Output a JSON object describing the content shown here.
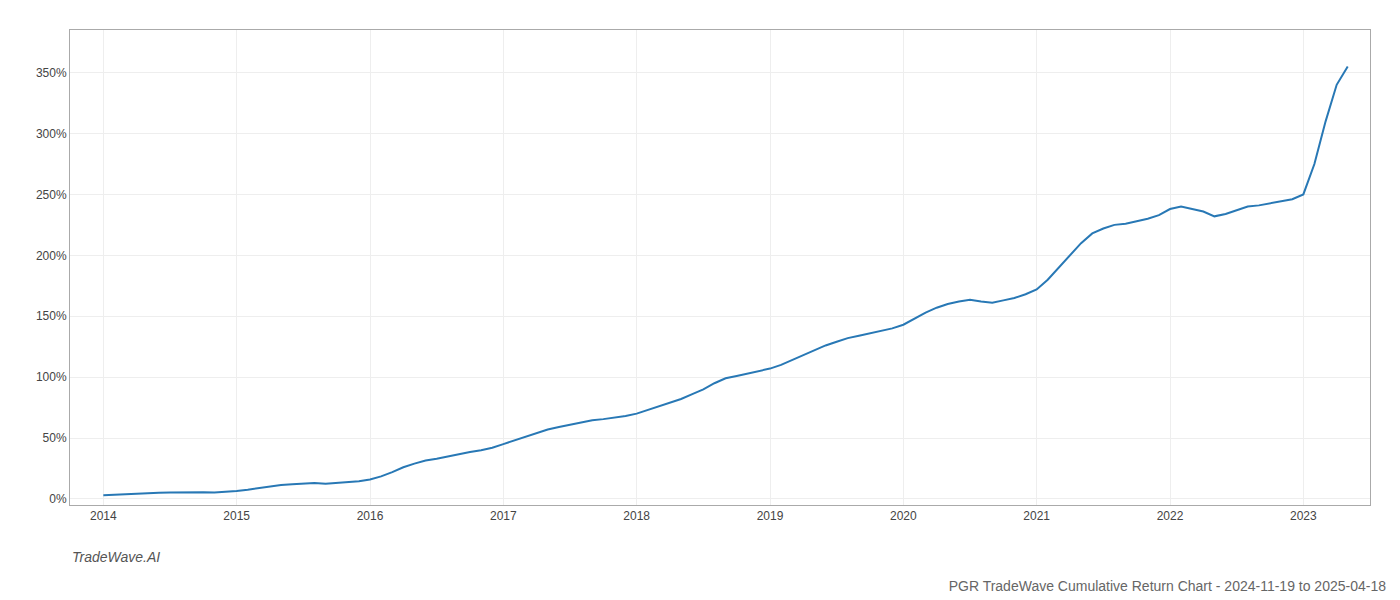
{
  "chart_data": {
    "type": "line",
    "title": "PGR TradeWave Cumulative Return Chart - 2024-11-19 to 2025-04-18",
    "annotations": [
      "TradeWave.AI"
    ],
    "color": "#2878b5",
    "grid": true,
    "x": [
      2014.0,
      2014.083,
      2014.167,
      2014.25,
      2014.333,
      2014.417,
      2014.5,
      2014.583,
      2014.667,
      2014.75,
      2014.833,
      2014.917,
      2015.0,
      2015.083,
      2015.167,
      2015.25,
      2015.333,
      2015.417,
      2015.5,
      2015.583,
      2015.667,
      2015.75,
      2015.833,
      2015.917,
      2016.0,
      2016.083,
      2016.167,
      2016.25,
      2016.333,
      2016.417,
      2016.5,
      2016.583,
      2016.667,
      2016.75,
      2016.833,
      2016.917,
      2017.0,
      2017.083,
      2017.167,
      2017.25,
      2017.333,
      2017.417,
      2017.5,
      2017.583,
      2017.667,
      2017.75,
      2017.833,
      2017.917,
      2018.0,
      2018.083,
      2018.167,
      2018.25,
      2018.333,
      2018.417,
      2018.5,
      2018.583,
      2018.667,
      2018.75,
      2018.833,
      2018.917,
      2019.0,
      2019.083,
      2019.167,
      2019.25,
      2019.333,
      2019.417,
      2019.5,
      2019.583,
      2019.667,
      2019.75,
      2019.833,
      2019.917,
      2020.0,
      2020.083,
      2020.167,
      2020.25,
      2020.333,
      2020.417,
      2020.5,
      2020.583,
      2020.667,
      2020.75,
      2020.833,
      2020.917,
      2021.0,
      2021.083,
      2021.167,
      2021.25,
      2021.333,
      2021.417,
      2021.5,
      2021.583,
      2021.667,
      2021.75,
      2021.833,
      2021.917,
      2022.0,
      2022.083,
      2022.167,
      2022.25,
      2022.333,
      2022.417,
      2022.5,
      2022.583,
      2022.667,
      2022.75,
      2022.833,
      2022.917,
      2023.0,
      2023.083,
      2023.167,
      2023.25,
      2023.333
    ],
    "values": [
      3.0,
      3.5,
      4.0,
      4.5,
      4.8,
      5.0,
      5.2,
      5.5,
      5.8,
      5.5,
      5.3,
      5.8,
      6.5,
      7.5,
      9.0,
      10.5,
      11.5,
      12.0,
      12.5,
      13.0,
      12.5,
      13.0,
      13.5,
      14.5,
      16.0,
      18.5,
      22.0,
      26.0,
      29.0,
      31.5,
      33.0,
      35.0,
      37.0,
      38.5,
      40.0,
      42.0,
      45.0,
      48.0,
      51.0,
      54.0,
      57.0,
      59.0,
      61.0,
      63.0,
      64.5,
      65.5,
      66.5,
      68.0,
      70.0,
      73.0,
      76.0,
      79.0,
      82.0,
      86.0,
      90.0,
      95.0,
      99.0,
      101.0,
      103.0,
      105.0,
      107.0,
      110.0,
      114.0,
      118.0,
      122.0,
      126.0,
      129.0,
      132.0,
      134.0,
      136.0,
      138.0,
      140.0,
      143.0,
      148.0,
      153.0,
      157.0,
      160.0,
      162.0,
      163.5,
      162.0,
      161.0,
      163.0,
      165.0,
      168.0,
      172.0,
      180.0,
      190.0,
      200.0,
      210.0,
      218.0,
      222.0,
      225.0,
      226.0,
      228.0,
      230.0,
      233.0,
      238.0,
      240.0,
      238.0,
      236.0,
      232.0,
      234.0,
      237.0,
      240.0,
      241.0,
      242.5,
      244.0,
      246.0,
      250.0,
      275.0,
      310.0,
      340.0,
      355.0
    ],
    "xlim": [
      2013.75,
      2023.5
    ],
    "xticks": [
      2014,
      2015,
      2016,
      2017,
      2018,
      2019,
      2020,
      2021,
      2022,
      2023
    ],
    "ylim": [
      -5,
      385
    ],
    "yticks": [
      {
        "value": 0,
        "label": "0%"
      },
      {
        "value": 50,
        "label": "50%"
      },
      {
        "value": 100,
        "label": "100%"
      },
      {
        "value": 150,
        "label": "150%"
      },
      {
        "value": 200,
        "label": "200%"
      },
      {
        "value": 250,
        "label": "250%"
      },
      {
        "value": 300,
        "label": "300%"
      },
      {
        "value": 350,
        "label": "350%"
      }
    ]
  }
}
